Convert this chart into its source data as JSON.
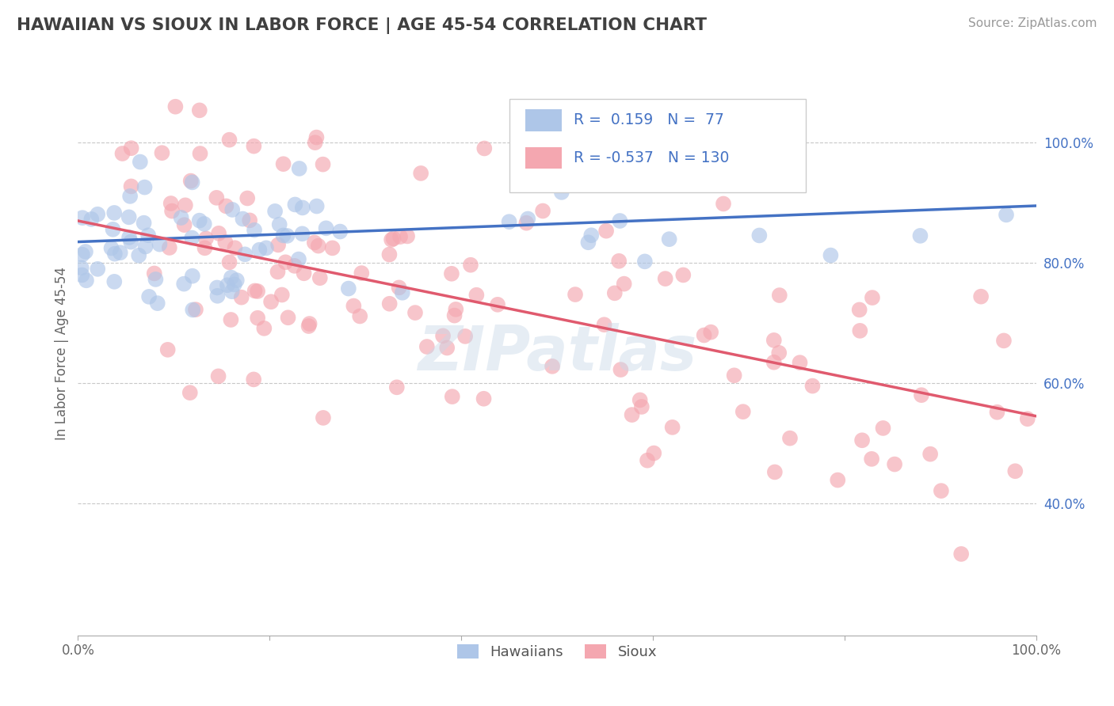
{
  "title": "HAWAIIAN VS SIOUX IN LABOR FORCE | AGE 45-54 CORRELATION CHART",
  "source": "Source: ZipAtlas.com",
  "ylabel": "In Labor Force | Age 45-54",
  "xlim": [
    0.0,
    1.0
  ],
  "ylim": [
    0.18,
    1.12
  ],
  "ytick_positions": [
    0.4,
    0.6,
    0.8,
    1.0
  ],
  "ytick_labels_right": [
    "40.0%",
    "60.0%",
    "80.0%",
    "100.0%"
  ],
  "R_hawaiian": 0.159,
  "N_hawaiian": 77,
  "R_sioux": -0.537,
  "N_sioux": 130,
  "color_hawaiian": "#aec6e8",
  "color_sioux": "#f4a7b0",
  "line_color_hawaiian": "#4472c4",
  "line_color_sioux": "#e05a6e",
  "watermark_color": "#c8d8e8",
  "background_color": "#ffffff",
  "grid_color": "#c8c8c8",
  "title_color": "#404040",
  "trend_h_start": 0.835,
  "trend_h_end": 0.895,
  "trend_s_start": 0.87,
  "trend_s_end": 0.545
}
